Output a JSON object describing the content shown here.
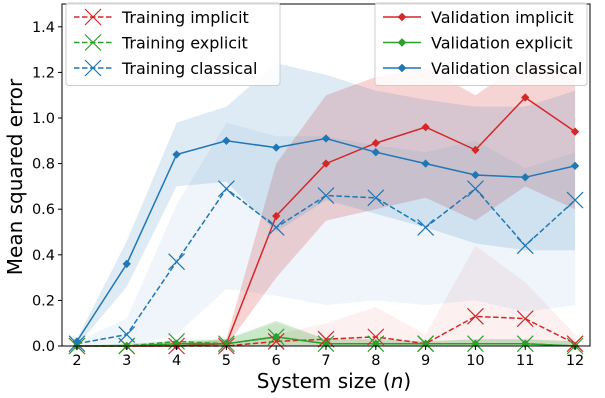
{
  "chart_data": {
    "type": "line",
    "xlabel": "System size (n)",
    "ylabel": "Mean squared error",
    "xlim": [
      1.7,
      12.3
    ],
    "ylim": [
      0,
      1.5
    ],
    "xticks": [
      2,
      3,
      4,
      5,
      6,
      7,
      8,
      9,
      10,
      11,
      12
    ],
    "yticks": [
      0.0,
      0.2,
      0.4,
      0.6,
      0.8,
      1.0,
      1.2,
      1.4
    ],
    "x": [
      2,
      3,
      4,
      5,
      6,
      7,
      8,
      9,
      10,
      11,
      12
    ],
    "series": [
      {
        "name": "Validation implicit",
        "color": "#d62728",
        "style": "solid",
        "marker": "diamond",
        "group": "validation",
        "values": [
          0.0,
          0.0,
          0.0,
          0.01,
          0.57,
          0.8,
          0.89,
          0.96,
          0.86,
          1.09,
          0.94
        ],
        "lower": [
          0.0,
          0.0,
          0.0,
          0.0,
          0.3,
          0.55,
          0.6,
          0.65,
          0.55,
          0.7,
          0.6
        ],
        "upper": [
          0.0,
          0.0,
          0.01,
          0.03,
          0.8,
          1.1,
          1.18,
          1.22,
          1.1,
          1.25,
          1.2
        ],
        "band_opacity": 0.2
      },
      {
        "name": "Validation explicit",
        "color": "#2ca02c",
        "style": "solid",
        "marker": "diamond",
        "group": "validation",
        "values": [
          0.0,
          0.0,
          0.01,
          0.01,
          0.04,
          0.01,
          0.01,
          0.01,
          0.01,
          0.01,
          0.0
        ],
        "lower": [
          0.0,
          0.0,
          0.0,
          0.0,
          0.0,
          0.0,
          0.0,
          0.0,
          0.0,
          0.0,
          0.0
        ],
        "upper": [
          0.0,
          0.01,
          0.02,
          0.03,
          0.11,
          0.03,
          0.03,
          0.02,
          0.03,
          0.03,
          0.02
        ],
        "band_opacity": 0.2
      },
      {
        "name": "Validation classical",
        "color": "#1f77b4",
        "style": "solid",
        "marker": "diamond",
        "group": "validation",
        "values": [
          0.02,
          0.36,
          0.84,
          0.9,
          0.87,
          0.91,
          0.85,
          0.8,
          0.75,
          0.74,
          0.79
        ],
        "lower": [
          0.0,
          0.26,
          0.7,
          0.72,
          0.5,
          0.64,
          0.58,
          0.52,
          0.45,
          0.42,
          0.42
        ],
        "upper": [
          0.03,
          0.46,
          0.98,
          1.05,
          1.24,
          1.19,
          1.12,
          1.08,
          1.05,
          1.05,
          1.12
        ],
        "band_opacity": 0.15
      },
      {
        "name": "Training implicit",
        "color": "#d62728",
        "style": "dashed",
        "marker": "x",
        "group": "training",
        "values": [
          0.0,
          0.0,
          0.0,
          0.0,
          0.02,
          0.03,
          0.04,
          0.01,
          0.13,
          0.12,
          0.01
        ],
        "lower": [
          0.0,
          0.0,
          0.0,
          0.0,
          0.0,
          0.0,
          0.0,
          0.0,
          0.0,
          0.0,
          0.0
        ],
        "upper": [
          0.0,
          0.0,
          0.0,
          0.01,
          0.05,
          0.1,
          0.17,
          0.05,
          0.44,
          0.28,
          0.05
        ],
        "band_opacity": 0.07
      },
      {
        "name": "Training explicit",
        "color": "#2ca02c",
        "style": "dashed",
        "marker": "x",
        "group": "training",
        "values": [
          0.0,
          0.0,
          0.02,
          0.01,
          0.04,
          0.01,
          0.01,
          0.01,
          0.01,
          0.01,
          0.0
        ],
        "lower": [
          0.0,
          0.0,
          0.0,
          0.0,
          0.0,
          0.0,
          0.0,
          0.0,
          0.0,
          0.0,
          0.0
        ],
        "upper": [
          0.0,
          0.01,
          0.03,
          0.03,
          0.1,
          0.03,
          0.03,
          0.02,
          0.03,
          0.03,
          0.02
        ],
        "band_opacity": 0.07
      },
      {
        "name": "Training classical",
        "color": "#1f77b4",
        "style": "dashed",
        "marker": "x",
        "group": "training",
        "values": [
          0.01,
          0.05,
          0.37,
          0.69,
          0.52,
          0.66,
          0.65,
          0.52,
          0.69,
          0.44,
          0.64
        ],
        "lower": [
          0.0,
          0.0,
          0.05,
          0.25,
          0.22,
          0.18,
          0.2,
          0.18,
          0.2,
          0.15,
          0.18
        ],
        "upper": [
          0.02,
          0.12,
          0.62,
          0.98,
          0.92,
          0.92,
          0.88,
          0.85,
          0.9,
          0.78,
          0.85
        ],
        "band_opacity": 0.07
      }
    ],
    "legends": [
      {
        "position": "top-left",
        "entries": [
          "Training implicit",
          "Training explicit",
          "Training classical"
        ]
      },
      {
        "position": "top-right",
        "entries": [
          "Validation implicit",
          "Validation explicit",
          "Validation classical"
        ]
      }
    ]
  }
}
